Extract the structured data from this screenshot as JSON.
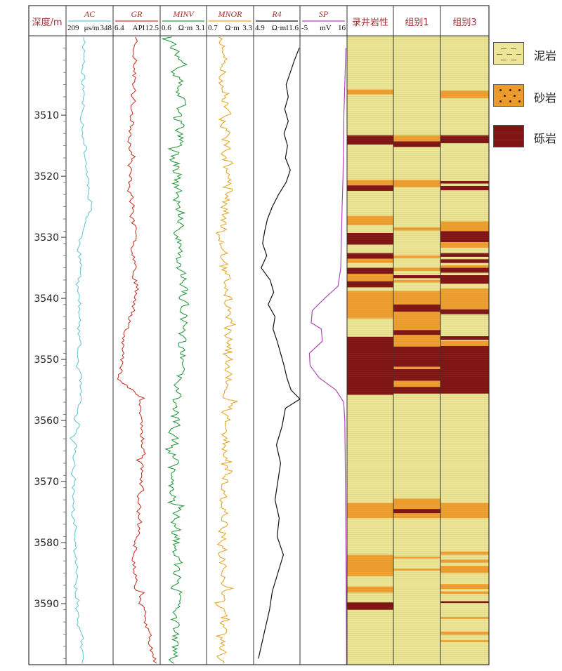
{
  "chart_data": {
    "type": "line",
    "depth_axis": {
      "label": "深度/m",
      "range": [
        3497,
        3600
      ],
      "ticks": [
        3510,
        3520,
        3530,
        3540,
        3550,
        3560,
        3570,
        3580,
        3590
      ]
    },
    "curves": [
      {
        "name": "AC",
        "min": "209",
        "unit": "μs/m",
        "max": "348",
        "color": "#6cc8d0"
      },
      {
        "name": "GR",
        "min": "6.4",
        "unit": "API",
        "max": "12.5",
        "color": "#c9392b"
      },
      {
        "name": "MINV",
        "min": "0.6",
        "unit": "Ω·m",
        "max": "3.1",
        "color": "#2e9a44"
      },
      {
        "name": "MNOR",
        "min": "0.7",
        "unit": "Ω·m",
        "max": "3.3",
        "color": "#e3a92b"
      },
      {
        "name": "R4",
        "min": "4.9",
        "unit": "Ω·m",
        "max": "11.6",
        "color": "#111111"
      },
      {
        "name": "SP",
        "min": "-5",
        "unit": "mV",
        "max": "16",
        "color": "#b044b8"
      }
    ],
    "curve_samples": {
      "R4": {
        "depth": [
          3499,
          3501,
          3503,
          3505,
          3507,
          3509,
          3511,
          3513,
          3515,
          3517,
          3519,
          3521,
          3523,
          3525,
          3527,
          3529,
          3531,
          3533,
          3535,
          3537,
          3539,
          3541,
          3543,
          3545,
          3547,
          3549,
          3551,
          3553,
          3555,
          3556.5,
          3558,
          3561,
          3564,
          3567,
          3570,
          3573,
          3576,
          3579,
          3582,
          3585,
          3588,
          3591,
          3594,
          3597,
          3599
        ],
        "value": [
          11.5,
          10.8,
          10.2,
          9.6,
          9.9,
          9.4,
          9.9,
          9.3,
          9.8,
          9.5,
          10.2,
          9.6,
          8.5,
          7.6,
          6.9,
          6.5,
          6.2,
          6.8,
          6.0,
          7.3,
          7.8,
          7.0,
          8.0,
          7.7,
          8.3,
          8.8,
          9.3,
          9.7,
          10.3,
          11.6,
          9.5,
          9.0,
          8.2,
          8.8,
          8.4,
          8.0,
          8.6,
          8.3,
          9.2,
          8.4,
          7.6,
          7.2,
          6.6,
          6.0,
          5.6
        ]
      },
      "SP": {
        "depth": [
          3499,
          3505,
          3510,
          3515,
          3520,
          3525,
          3530,
          3535,
          3538,
          3540,
          3542,
          3544,
          3545,
          3547,
          3549,
          3551,
          3553,
          3555,
          3557,
          3560,
          3570,
          3580,
          3590,
          3600
        ],
        "value": [
          15.5,
          15.0,
          14.6,
          14.4,
          14.2,
          13.8,
          13.5,
          13.2,
          12.0,
          6.0,
          0.5,
          0.0,
          4.5,
          5.0,
          -0.8,
          -0.5,
          3.5,
          11.0,
          14.5,
          15.0,
          15.3,
          15.5,
          15.7,
          15.8
        ]
      }
    },
    "lithology": {
      "columns": [
        "录井岩性",
        "组别1",
        "组别3"
      ],
      "classes": [
        {
          "name": "泥岩",
          "color": "#ece595"
        },
        {
          "name": "砂岩",
          "color": "#eb9b2b"
        },
        {
          "name": "砾岩",
          "color": "#7e1414"
        }
      ],
      "intervals": [
        [
          {
            "top": 3505.8,
            "bottom": 3506.6,
            "class": "砂岩"
          },
          {
            "top": 3513.3,
            "bottom": 3514.8,
            "class": "砾岩"
          },
          {
            "top": 3520.6,
            "bottom": 3521.5,
            "class": "砂岩"
          },
          {
            "top": 3521.5,
            "bottom": 3522.4,
            "class": "砾岩"
          },
          {
            "top": 3526.5,
            "bottom": 3528.0,
            "class": "砂岩"
          },
          {
            "top": 3529.3,
            "bottom": 3531.2,
            "class": "砾岩"
          },
          {
            "top": 3532.6,
            "bottom": 3533.5,
            "class": "砾岩"
          },
          {
            "top": 3533.5,
            "bottom": 3534.2,
            "class": "砂岩"
          },
          {
            "top": 3535.0,
            "bottom": 3536.0,
            "class": "砾岩"
          },
          {
            "top": 3536.0,
            "bottom": 3537.2,
            "class": "砂岩"
          },
          {
            "top": 3537.2,
            "bottom": 3538.2,
            "class": "砾岩"
          },
          {
            "top": 3538.8,
            "bottom": 3543.3,
            "class": "砂岩"
          },
          {
            "top": 3546.3,
            "bottom": 3555.8,
            "class": "砾岩"
          },
          {
            "top": 3573.5,
            "bottom": 3576.0,
            "class": "砂岩"
          },
          {
            "top": 3582.0,
            "bottom": 3585.5,
            "class": "砂岩"
          },
          {
            "top": 3587.2,
            "bottom": 3588.2,
            "class": "砂岩"
          },
          {
            "top": 3589.8,
            "bottom": 3591.0,
            "class": "砾岩"
          }
        ],
        [
          {
            "top": 3513.3,
            "bottom": 3514.3,
            "class": "砂岩"
          },
          {
            "top": 3514.3,
            "bottom": 3515.2,
            "class": "砾岩"
          },
          {
            "top": 3520.6,
            "bottom": 3521.8,
            "class": "砂岩"
          },
          {
            "top": 3528.4,
            "bottom": 3528.9,
            "class": "砂岩"
          },
          {
            "top": 3533.0,
            "bottom": 3533.4,
            "class": "砂岩"
          },
          {
            "top": 3535.0,
            "bottom": 3535.5,
            "class": "砂岩"
          },
          {
            "top": 3536.2,
            "bottom": 3536.7,
            "class": "砾岩"
          },
          {
            "top": 3537.0,
            "bottom": 3537.4,
            "class": "砂岩"
          },
          {
            "top": 3538.8,
            "bottom": 3541.0,
            "class": "砂岩"
          },
          {
            "top": 3541.0,
            "bottom": 3542.2,
            "class": "砾岩"
          },
          {
            "top": 3542.2,
            "bottom": 3545.2,
            "class": "砂岩"
          },
          {
            "top": 3545.2,
            "bottom": 3546.0,
            "class": "砾岩"
          },
          {
            "top": 3546.0,
            "bottom": 3547.9,
            "class": "砂岩"
          },
          {
            "top": 3547.9,
            "bottom": 3551.2,
            "class": "砾岩"
          },
          {
            "top": 3551.2,
            "bottom": 3551.6,
            "class": "砂岩"
          },
          {
            "top": 3551.6,
            "bottom": 3553.5,
            "class": "砾岩"
          },
          {
            "top": 3553.5,
            "bottom": 3554.5,
            "class": "砂岩"
          },
          {
            "top": 3554.5,
            "bottom": 3555.6,
            "class": "砾岩"
          },
          {
            "top": 3572.8,
            "bottom": 3574.5,
            "class": "砂岩"
          },
          {
            "top": 3574.5,
            "bottom": 3575.2,
            "class": "砾岩"
          },
          {
            "top": 3575.2,
            "bottom": 3576.0,
            "class": "砂岩"
          },
          {
            "top": 3582.3,
            "bottom": 3582.6,
            "class": "砂岩"
          },
          {
            "top": 3584.3,
            "bottom": 3584.6,
            "class": "砂岩"
          }
        ],
        [
          {
            "top": 3506.0,
            "bottom": 3507.2,
            "class": "砂岩"
          },
          {
            "top": 3513.3,
            "bottom": 3514.6,
            "class": "砾岩"
          },
          {
            "top": 3520.8,
            "bottom": 3521.2,
            "class": "砾岩"
          },
          {
            "top": 3521.6,
            "bottom": 3522.3,
            "class": "砾岩"
          },
          {
            "top": 3527.4,
            "bottom": 3529.0,
            "class": "砂岩"
          },
          {
            "top": 3529.0,
            "bottom": 3530.8,
            "class": "砾岩"
          },
          {
            "top": 3530.8,
            "bottom": 3531.7,
            "class": "砂岩"
          },
          {
            "top": 3532.6,
            "bottom": 3533.2,
            "class": "砾岩"
          },
          {
            "top": 3533.6,
            "bottom": 3534.2,
            "class": "砾岩"
          },
          {
            "top": 3534.6,
            "bottom": 3535.0,
            "class": "砂岩"
          },
          {
            "top": 3535.0,
            "bottom": 3535.8,
            "class": "砾岩"
          },
          {
            "top": 3536.2,
            "bottom": 3537.6,
            "class": "砾岩"
          },
          {
            "top": 3538.4,
            "bottom": 3541.8,
            "class": "砂岩"
          },
          {
            "top": 3541.8,
            "bottom": 3542.6,
            "class": "砾岩"
          },
          {
            "top": 3546.2,
            "bottom": 3546.8,
            "class": "砾岩"
          },
          {
            "top": 3547.0,
            "bottom": 3547.8,
            "class": "砂岩"
          },
          {
            "top": 3547.8,
            "bottom": 3555.6,
            "class": "砾岩"
          },
          {
            "top": 3573.5,
            "bottom": 3576.0,
            "class": "砂岩"
          },
          {
            "top": 3581.5,
            "bottom": 3582.0,
            "class": "砂岩"
          },
          {
            "top": 3582.8,
            "bottom": 3583.3,
            "class": "砂岩"
          },
          {
            "top": 3583.8,
            "bottom": 3585.0,
            "class": "砂岩"
          },
          {
            "top": 3586.8,
            "bottom": 3587.6,
            "class": "砂岩"
          },
          {
            "top": 3588.0,
            "bottom": 3588.4,
            "class": "砂岩"
          },
          {
            "top": 3589.6,
            "bottom": 3589.9,
            "class": "砾岩"
          },
          {
            "top": 3592.2,
            "bottom": 3592.5,
            "class": "砂岩"
          },
          {
            "top": 3594.6,
            "bottom": 3595.1,
            "class": "砂岩"
          },
          {
            "top": 3596.0,
            "bottom": 3596.3,
            "class": "砂岩"
          }
        ]
      ]
    }
  }
}
